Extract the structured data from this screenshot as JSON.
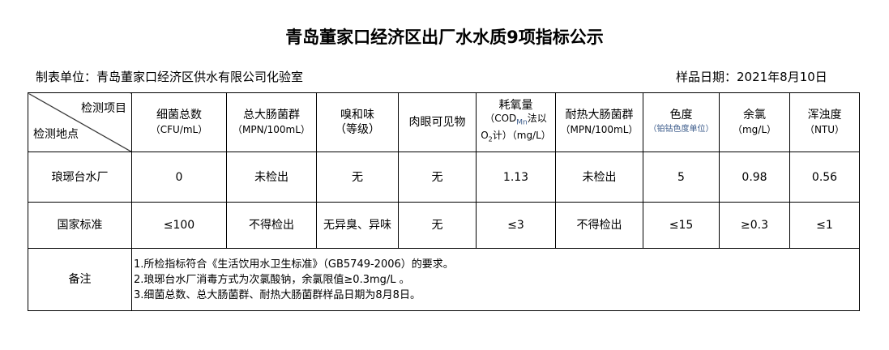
{
  "title": "青岛董家口经济区出厂水水质9项指标公示",
  "unit": "制表单位：青岛董家口经济区供水有限公司化验室",
  "date": "样品日期：2021年8月10日",
  "header": {
    "item": "检测项目",
    "site": "检测地点",
    "cols": [
      {
        "l1": "细菌总数",
        "l2": "（CFU/mL）"
      },
      {
        "l1": "总大肠菌群",
        "l2": "（MPN/100mL）"
      },
      {
        "l1": "嗅和味",
        "l2": "（等级）"
      },
      {
        "l1": "肉眼可见物",
        "l2": ""
      },
      {
        "l1": "耗氧量",
        "l2": "（COD",
        "sub": "Mn",
        "l2b": "法以",
        "l3": "O",
        "sub2": "2",
        "l3b": "计）（mg/L）"
      },
      {
        "l1": "耐热大肠菌群",
        "l2": "（MPN/100mL）"
      },
      {
        "l1": "色度",
        "l2": "（铂钴色度单位）"
      },
      {
        "l1": "余氯",
        "l2": "（mg/L）"
      },
      {
        "l1": "浑浊度",
        "l2": "（NTU）"
      }
    ]
  },
  "rows": [
    {
      "site": "琅琊台水厂",
      "values": [
        "0",
        "未检出",
        "无",
        "无",
        "1.13",
        "未检出",
        "5",
        "0.98",
        "0.56"
      ]
    },
    {
      "site": "国家标准",
      "values": [
        "≤100",
        "不得检出",
        "无异臭、异味",
        "无",
        "≤3",
        "不得检出",
        "≤15",
        "≥0.3",
        "≤1"
      ]
    }
  ],
  "remarks": {
    "label": "备注",
    "lines": [
      "1.所检指标符合《生活饮用水卫生标准》（GB5749-2006）的要求。",
      "2.琅琊台水厂消毒方式为次氯酸钠，余氯限值≥0.3mg/L 。",
      "3.细菌总数、总大肠菌群、耐热大肠菌群样品日期为8月8日。"
    ]
  }
}
